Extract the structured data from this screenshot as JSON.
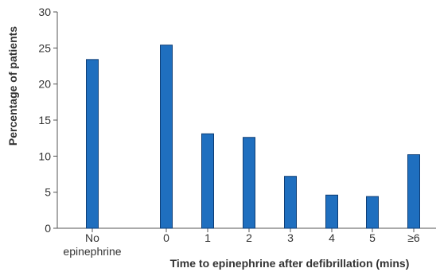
{
  "chart_data": {
    "type": "bar",
    "title": "",
    "xlabel": "Time to epinephrine after defibrillation (mins)",
    "ylabel": "Percentage of patients",
    "ylim": [
      0,
      30
    ],
    "yticks": [
      0,
      5,
      10,
      15,
      20,
      25,
      30
    ],
    "grid": false,
    "categories": [
      "No epinephrine",
      "0",
      "1",
      "2",
      "3",
      "4",
      "5",
      "≥6"
    ],
    "category_label_lines": [
      [
        "No",
        "epinephrine"
      ],
      [
        "0"
      ],
      [
        "1"
      ],
      [
        "2"
      ],
      [
        "3"
      ],
      [
        "4"
      ],
      [
        "5"
      ],
      [
        "≥6"
      ]
    ],
    "values": [
      23.4,
      25.4,
      13.1,
      12.6,
      7.2,
      4.6,
      4.4,
      10.2
    ],
    "bar_color": "#1f6fbf",
    "bar_edge_color": "#0d3d75"
  }
}
